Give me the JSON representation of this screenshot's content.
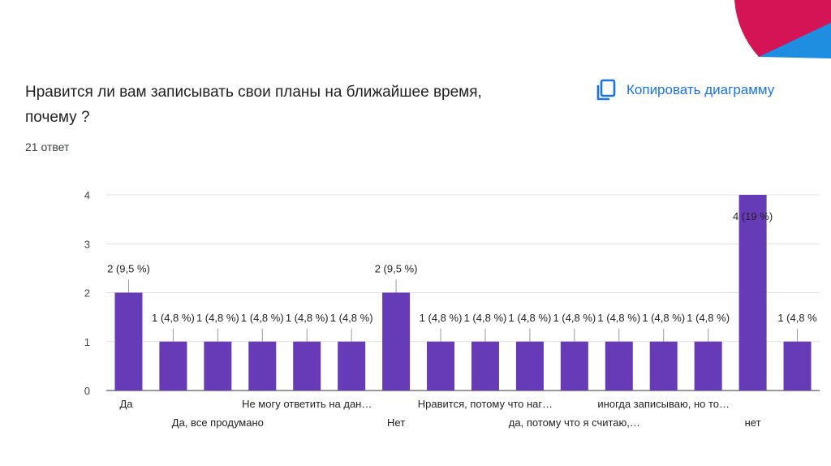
{
  "question": {
    "title_line1": "Нравится ли вам записывать свои планы на ближайшее время,",
    "title_line2": "почему ?",
    "response_count": "21 ответ"
  },
  "copy_button": {
    "label": "Копировать диаграмму",
    "icon": "copy-icon"
  },
  "colors": {
    "bar": "#673ab7",
    "accent_blue": "#1a73e8",
    "deco_red": "#d51456",
    "deco_blue": "#1f8de0"
  },
  "chart_data": {
    "type": "bar",
    "ylim": [
      0,
      4
    ],
    "yticks": [
      0,
      1,
      2,
      3,
      4
    ],
    "grid": true,
    "legend": "none",
    "values": [
      2,
      1,
      1,
      1,
      1,
      1,
      2,
      1,
      1,
      1,
      1,
      1,
      1,
      1,
      4,
      1
    ],
    "data_labels": [
      "2 (9,5 %)",
      "1 (4,8 %)",
      "1 (4,8 %)",
      "1 (4,8 %)",
      "1 (4,8 %)",
      "1 (4,8 %)",
      "2 (9,5 %)",
      "1 (4,8 %)",
      "1 (4,8 %)",
      "1 (4,8 %)",
      "1 (4,8 %)",
      "1 (4,8 %)",
      "1 (4,8 %)",
      "1 (4,8 %)",
      "4 (19 %)",
      "1 (4,8 %"
    ],
    "category_labels": [
      {
        "text": "Да",
        "index": 0,
        "row": 0
      },
      {
        "text": "Да, все продумано",
        "index": 2,
        "row": 1
      },
      {
        "text": "Не могу ответить на дан…",
        "index": 4,
        "row": 0
      },
      {
        "text": "Нет",
        "index": 6,
        "row": 1
      },
      {
        "text": "Нравится, потому что наг…",
        "index": 8,
        "row": 0
      },
      {
        "text": "да, потому что я считаю,…",
        "index": 10,
        "row": 1
      },
      {
        "text": "иногда записываю, но то…",
        "index": 12,
        "row": 0
      },
      {
        "text": "нет",
        "index": 14,
        "row": 1
      }
    ]
  }
}
